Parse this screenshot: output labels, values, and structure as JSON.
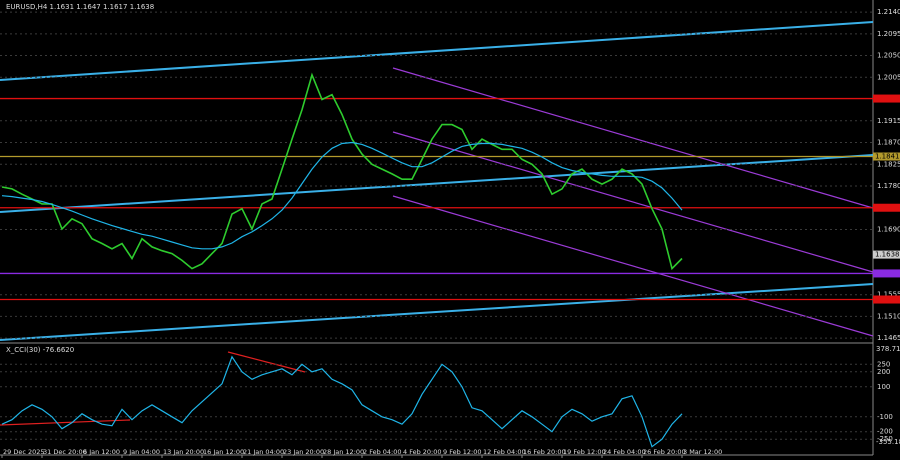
{
  "chart_data": [
    {
      "type": "line",
      "title": "EURUSD,H4  1.1631 1.1647 1.1617 1.1638",
      "categories": [
        "29 Dec 2025",
        null,
        null,
        null,
        "31 Dec 20:00",
        null,
        null,
        null,
        "6 Jan 12:00",
        null,
        null,
        null,
        "9 Jan 04:00",
        null,
        null,
        null,
        "13 Jan 20:00",
        null,
        null,
        null,
        "16 Jan 12:00",
        null,
        null,
        null,
        "21 Jan 04:00",
        null,
        null,
        null,
        "23 Jan 20:00",
        null,
        null,
        null,
        "28 Jan 12:00",
        null,
        null,
        null,
        "2 Feb 04:00",
        null,
        null,
        null,
        "4 Feb 20:00",
        null,
        null,
        null,
        "9 Feb 12:00",
        null,
        null,
        null,
        "12 Feb 04:00",
        null,
        null,
        null,
        "16 Feb 20:00",
        null,
        null,
        null,
        "19 Feb 12:00",
        null,
        null,
        null,
        "24 Feb 04:00",
        null,
        null,
        null,
        "26 Feb 20:00",
        null,
        null,
        null,
        "3 Mar 12:00"
      ],
      "series": [
        {
          "color": "#2ecc2e",
          "values": [
            1.1778,
            1.1774,
            1.1763,
            1.1753,
            1.1743,
            1.1743,
            1.1691,
            1.1712,
            1.1702,
            1.1671,
            1.1661,
            1.165,
            1.1661,
            1.163,
            1.1671,
            1.1654,
            1.1646,
            1.164,
            1.1626,
            1.1609,
            1.1619,
            1.164,
            1.1661,
            1.1722,
            1.1733,
            1.1691,
            1.1743,
            1.1753,
            1.1815,
            1.1877,
            1.1938,
            1.201,
            1.1959,
            1.1969,
            1.1928,
            1.1877,
            1.1846,
            1.1825,
            1.1815,
            1.1805,
            1.1794,
            1.1794,
            1.1835,
            1.1877,
            1.1907,
            1.1907,
            1.1897,
            1.1856,
            1.1877,
            1.1866,
            1.1856,
            1.1856,
            1.1835,
            1.1825,
            1.1805,
            1.1763,
            1.1774,
            1.1805,
            1.1815,
            1.1794,
            1.1784,
            1.1794,
            1.1815,
            1.1805,
            1.1784,
            1.1733,
            1.1691,
            1.1609,
            1.163
          ]
        },
        {
          "color": "#1fb5e8",
          "values": [
            1.176,
            1.1758,
            1.1755,
            1.1752,
            1.1748,
            1.1742,
            1.1735,
            1.1728,
            1.172,
            1.1712,
            1.1705,
            1.1698,
            1.1692,
            1.1686,
            1.168,
            1.1676,
            1.167,
            1.1664,
            1.1658,
            1.1652,
            1.165,
            1.165,
            1.1654,
            1.1662,
            1.1675,
            1.1685,
            1.1698,
            1.1712,
            1.173,
            1.1755,
            1.1785,
            1.1815,
            1.184,
            1.1858,
            1.1868,
            1.187,
            1.1866,
            1.1858,
            1.1848,
            1.1838,
            1.1828,
            1.182,
            1.182,
            1.1828,
            1.184,
            1.1852,
            1.1862,
            1.1866,
            1.1868,
            1.1868,
            1.1866,
            1.1862,
            1.1858,
            1.185,
            1.184,
            1.1828,
            1.1818,
            1.1812,
            1.1808,
            1.1805,
            1.1802,
            1.18,
            1.18,
            1.18,
            1.1798,
            1.179,
            1.1776,
            1.1755,
            1.173
          ]
        }
      ],
      "ylim": [
        1.1455,
        1.2165
      ],
      "yticks": [
        {
          "value": 1.214,
          "label": "1.2140"
        },
        {
          "value": 1.2095,
          "label": "1.2095"
        },
        {
          "value": 1.205,
          "label": "1.2050"
        },
        {
          "value": 1.2005,
          "label": "1.2005"
        },
        {
          "value": 1.1915,
          "label": "1.1915"
        },
        {
          "value": 1.187,
          "label": "1.1870"
        },
        {
          "value": 1.1825,
          "label": "1.1825"
        },
        {
          "value": 1.178,
          "label": "1.1780"
        },
        {
          "value": 1.169,
          "label": "1.1690"
        },
        {
          "value": 1.1555,
          "label": "1.1555"
        },
        {
          "value": 1.151,
          "label": "1.1510"
        },
        {
          "value": 1.1465,
          "label": "1.1465"
        }
      ],
      "levels": [
        {
          "value": 1.1961,
          "color": "#e01010"
        },
        {
          "value": 1.1841,
          "color": "#b39a2c",
          "label": "1.1841"
        },
        {
          "value": 1.1735,
          "color": "#e01010"
        },
        {
          "value": 1.1599,
          "color": "#8a2be2"
        },
        {
          "value": 1.1545,
          "color": "#e01010"
        }
      ],
      "last_price": 1.1638,
      "grid": true
    },
    {
      "type": "line",
      "title": "X_CCI(30) -76.6620",
      "series": [
        {
          "color": "#1fb5e8",
          "values": [
            -150,
            -120,
            -60,
            -20,
            -50,
            -100,
            -180,
            -140,
            -80,
            -120,
            -150,
            -160,
            -50,
            -120,
            -60,
            -20,
            -60,
            -100,
            -140,
            -60,
            0,
            60,
            120,
            300,
            200,
            150,
            180,
            200,
            220,
            180,
            250,
            200,
            220,
            150,
            120,
            80,
            -20,
            -60,
            -100,
            -120,
            -150,
            -80,
            50,
            150,
            250,
            200,
            100,
            -40,
            -60,
            -120,
            -180,
            -120,
            -60,
            -100,
            -150,
            -200,
            -100,
            -50,
            -80,
            -130,
            -100,
            -80,
            20,
            40,
            -100,
            -300,
            -250,
            -150,
            -80
          ]
        }
      ],
      "ylim": [
        -355.189,
        378.7116
      ],
      "yticks": [
        250,
        200,
        100,
        -100,
        -200,
        -250
      ],
      "grid": true
    }
  ]
}
